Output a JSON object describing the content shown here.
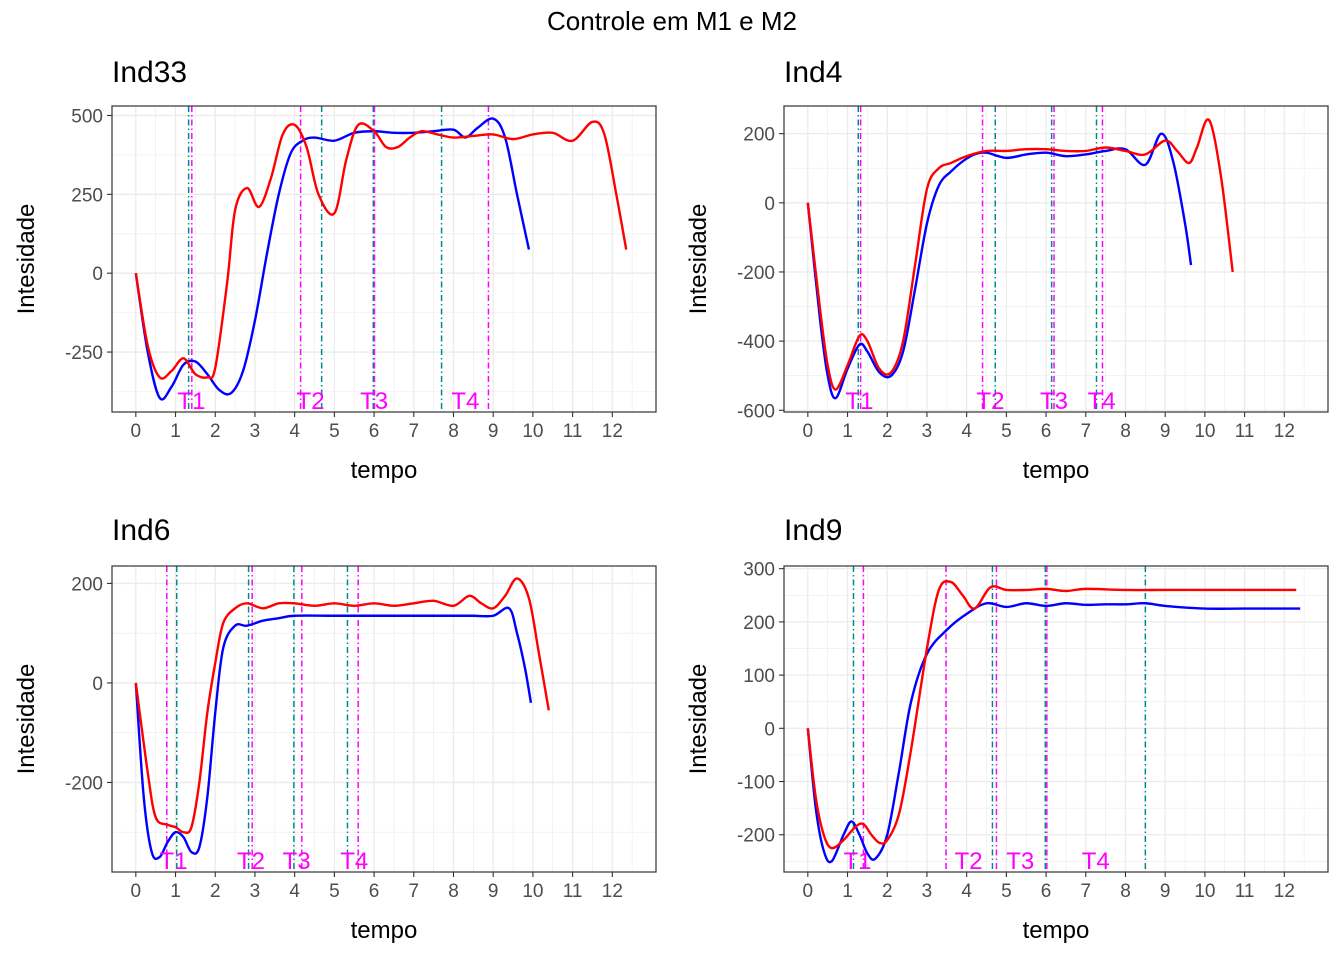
{
  "title": "Controle em M1 e M2",
  "colors": {
    "series_a": "#0000ff",
    "series_b": "#ff0000",
    "vline_a": "#008b8b",
    "vline_b": "#ff00ff",
    "t_label": "#ff00ff",
    "grid": "#ebebeb",
    "panel_border": "#333333"
  },
  "chart_data": [
    {
      "type": "line",
      "title": "Ind33",
      "xlabel": "tempo",
      "ylabel": "Intesidade",
      "xlim": [
        -0.6,
        13.1
      ],
      "ylim": [
        -440,
        530
      ],
      "x_ticks": [
        0,
        1,
        2,
        3,
        4,
        5,
        6,
        7,
        8,
        9,
        10,
        11,
        12
      ],
      "y_ticks": [
        -250,
        0,
        250,
        500
      ],
      "y_tick_labels": [
        "-250",
        "0",
        "250",
        "500"
      ],
      "grid": true,
      "series": [
        {
          "color": "blue",
          "x": [
            0,
            0.3,
            0.6,
            0.9,
            1.2,
            1.5,
            1.8,
            2.1,
            2.4,
            2.7,
            3.0,
            3.3,
            3.6,
            3.9,
            4.2,
            4.5,
            5.0,
            5.5,
            6.0,
            6.5,
            7.0,
            7.5,
            8.0,
            8.3,
            8.6,
            9.0,
            9.3,
            9.6,
            9.9
          ],
          "y": [
            0,
            -250,
            -395,
            -360,
            -290,
            -280,
            -320,
            -370,
            -380,
            -310,
            -150,
            60,
            250,
            380,
            420,
            430,
            420,
            445,
            450,
            445,
            445,
            450,
            455,
            430,
            460,
            490,
            430,
            250,
            75
          ]
        },
        {
          "color": "red",
          "x": [
            0,
            0.3,
            0.6,
            0.9,
            1.2,
            1.5,
            1.8,
            2.0,
            2.3,
            2.5,
            2.8,
            3.1,
            3.4,
            3.7,
            4.0,
            4.3,
            4.6,
            5.0,
            5.3,
            5.6,
            6.0,
            6.3,
            6.6,
            6.9,
            7.2,
            7.6,
            8.0,
            8.5,
            9.0,
            9.5,
            10.0,
            10.5,
            11.0,
            11.5,
            11.8,
            12.1,
            12.35
          ],
          "y": [
            0,
            -230,
            -330,
            -310,
            -270,
            -320,
            -330,
            -300,
            -30,
            200,
            270,
            210,
            300,
            440,
            470,
            400,
            250,
            190,
            360,
            470,
            450,
            400,
            400,
            430,
            450,
            440,
            430,
            435,
            440,
            425,
            440,
            445,
            420,
            480,
            440,
            250,
            75
          ]
        }
      ],
      "vlines": [
        {
          "x": 1.33,
          "color": "teal"
        },
        {
          "x": 1.41,
          "color": "magenta"
        },
        {
          "x": 4.15,
          "color": "magenta"
        },
        {
          "x": 4.68,
          "color": "teal"
        },
        {
          "x": 5.98,
          "color": "teal"
        },
        {
          "x": 6.01,
          "color": "magenta"
        },
        {
          "x": 7.7,
          "color": "teal"
        },
        {
          "x": 8.88,
          "color": "magenta"
        }
      ],
      "labels": [
        {
          "text": "T1",
          "x": 1.4
        },
        {
          "text": "T2",
          "x": 4.4
        },
        {
          "text": "T3",
          "x": 6.0
        },
        {
          "text": "T4",
          "x": 8.3
        }
      ]
    },
    {
      "type": "line",
      "title": "Ind4",
      "xlabel": "tempo",
      "ylabel": "Intesidade",
      "xlim": [
        -0.6,
        13.1
      ],
      "ylim": [
        -605,
        280
      ],
      "x_ticks": [
        0,
        1,
        2,
        3,
        4,
        5,
        6,
        7,
        8,
        9,
        10,
        11,
        12
      ],
      "y_ticks": [
        -600,
        -400,
        -200,
        0,
        200
      ],
      "y_tick_labels": [
        "-600",
        "-400",
        "-200",
        "0",
        "200"
      ],
      "grid": true,
      "series": [
        {
          "color": "blue",
          "x": [
            0,
            0.3,
            0.5,
            0.7,
            1.0,
            1.3,
            1.5,
            1.8,
            2.1,
            2.4,
            2.7,
            3.0,
            3.3,
            3.6,
            3.9,
            4.2,
            4.5,
            5.0,
            5.5,
            6.0,
            6.5,
            7.0,
            7.5,
            8.0,
            8.5,
            8.9,
            9.2,
            9.5,
            9.65
          ],
          "y": [
            0,
            -330,
            -500,
            -565,
            -480,
            -410,
            -430,
            -490,
            -500,
            -430,
            -250,
            -60,
            50,
            90,
            120,
            140,
            145,
            130,
            140,
            145,
            135,
            140,
            150,
            155,
            110,
            200,
            120,
            -60,
            -180
          ]
        },
        {
          "color": "red",
          "x": [
            0,
            0.3,
            0.5,
            0.7,
            1.0,
            1.3,
            1.5,
            1.8,
            2.1,
            2.4,
            2.7,
            3.0,
            3.3,
            3.6,
            4.0,
            4.5,
            5.0,
            5.5,
            6.0,
            6.5,
            7.0,
            7.5,
            8.0,
            8.5,
            9.0,
            9.3,
            9.6,
            9.8,
            10.1,
            10.4,
            10.7
          ],
          "y": [
            0,
            -300,
            -470,
            -540,
            -470,
            -385,
            -400,
            -480,
            -490,
            -400,
            -180,
            40,
            100,
            115,
            135,
            150,
            150,
            155,
            155,
            150,
            150,
            160,
            150,
            140,
            180,
            150,
            115,
            160,
            240,
            80,
            -200
          ]
        }
      ],
      "vlines": [
        {
          "x": 1.27,
          "color": "teal"
        },
        {
          "x": 1.33,
          "color": "magenta"
        },
        {
          "x": 4.4,
          "color": "magenta"
        },
        {
          "x": 4.72,
          "color": "teal"
        },
        {
          "x": 6.14,
          "color": "teal"
        },
        {
          "x": 6.2,
          "color": "magenta"
        },
        {
          "x": 7.27,
          "color": "teal"
        },
        {
          "x": 7.42,
          "color": "magenta"
        }
      ],
      "labels": [
        {
          "text": "T1",
          "x": 1.3
        },
        {
          "text": "T2",
          "x": 4.6
        },
        {
          "text": "T3",
          "x": 6.2
        },
        {
          "text": "T4",
          "x": 7.4
        }
      ]
    },
    {
      "type": "line",
      "title": "Ind6",
      "xlabel": "tempo",
      "ylabel": "Intesidade",
      "xlim": [
        -0.6,
        13.1
      ],
      "ylim": [
        -380,
        235
      ],
      "x_ticks": [
        0,
        1,
        2,
        3,
        4,
        5,
        6,
        7,
        8,
        9,
        10,
        11,
        12
      ],
      "y_ticks": [
        -200,
        0,
        200
      ],
      "y_tick_labels": [
        "-200",
        "0",
        "200"
      ],
      "grid": true,
      "series": [
        {
          "color": "blue",
          "x": [
            0,
            0.2,
            0.4,
            0.6,
            0.8,
            1.0,
            1.2,
            1.4,
            1.6,
            1.8,
            2.0,
            2.2,
            2.5,
            2.8,
            3.2,
            3.6,
            4.0,
            5.0,
            6.0,
            7.0,
            8.0,
            8.5,
            9.0,
            9.4,
            9.6,
            9.8,
            9.95
          ],
          "y": [
            0,
            -230,
            -340,
            -350,
            -320,
            -300,
            -310,
            -340,
            -330,
            -230,
            -60,
            70,
            115,
            115,
            125,
            130,
            135,
            135,
            135,
            135,
            135,
            135,
            135,
            150,
            100,
            30,
            -40
          ]
        },
        {
          "color": "red",
          "x": [
            0,
            0.3,
            0.5,
            0.8,
            1.0,
            1.2,
            1.4,
            1.6,
            1.8,
            2.0,
            2.2,
            2.5,
            2.8,
            3.2,
            3.6,
            4.0,
            4.5,
            5.0,
            5.5,
            6.0,
            6.5,
            7.0,
            7.5,
            8.0,
            8.4,
            8.7,
            9.0,
            9.3,
            9.6,
            9.9,
            10.15,
            10.4
          ],
          "y": [
            0,
            -180,
            -270,
            -285,
            -290,
            -300,
            -290,
            -200,
            -60,
            40,
            120,
            150,
            160,
            150,
            160,
            160,
            155,
            160,
            155,
            160,
            155,
            160,
            165,
            155,
            175,
            160,
            150,
            175,
            210,
            170,
            60,
            -55
          ]
        }
      ],
      "vlines": [
        {
          "x": 0.78,
          "color": "magenta"
        },
        {
          "x": 1.03,
          "color": "teal"
        },
        {
          "x": 2.84,
          "color": "teal"
        },
        {
          "x": 2.93,
          "color": "magenta"
        },
        {
          "x": 3.98,
          "color": "teal"
        },
        {
          "x": 4.18,
          "color": "magenta"
        },
        {
          "x": 5.33,
          "color": "teal"
        },
        {
          "x": 5.6,
          "color": "magenta"
        }
      ],
      "labels": [
        {
          "text": "T1",
          "x": 0.95
        },
        {
          "text": "T2",
          "x": 2.9
        },
        {
          "text": "T3",
          "x": 4.05
        },
        {
          "text": "T4",
          "x": 5.5
        }
      ]
    },
    {
      "type": "line",
      "title": "Ind9",
      "xlabel": "tempo",
      "ylabel": "Intesidade",
      "xlim": [
        -0.6,
        13.1
      ],
      "ylim": [
        -270,
        305
      ],
      "x_ticks": [
        0,
        1,
        2,
        3,
        4,
        5,
        6,
        7,
        8,
        9,
        10,
        11,
        12
      ],
      "y_ticks": [
        -200,
        -100,
        0,
        100,
        200,
        300
      ],
      "y_tick_labels": [
        "-200",
        "-100",
        "0",
        "100",
        "200",
        "300"
      ],
      "grid": true,
      "series": [
        {
          "color": "blue",
          "x": [
            0,
            0.2,
            0.4,
            0.6,
            0.9,
            1.1,
            1.3,
            1.5,
            1.7,
            2.0,
            2.3,
            2.6,
            3.0,
            3.5,
            4.0,
            4.5,
            5.0,
            5.5,
            6.0,
            6.5,
            7.0,
            7.5,
            8.0,
            8.5,
            9.0,
            10.0,
            11.0,
            12.0,
            12.4
          ],
          "y": [
            0,
            -150,
            -230,
            -250,
            -200,
            -175,
            -200,
            -235,
            -245,
            -200,
            -80,
            50,
            140,
            185,
            215,
            235,
            228,
            235,
            230,
            235,
            232,
            233,
            233,
            235,
            230,
            225,
            225,
            225,
            225
          ]
        },
        {
          "color": "red",
          "x": [
            0,
            0.2,
            0.4,
            0.6,
            0.9,
            1.2,
            1.4,
            1.6,
            1.8,
            2.0,
            2.3,
            2.6,
            3.0,
            3.3,
            3.6,
            3.9,
            4.2,
            4.6,
            5.0,
            5.5,
            6.0,
            6.5,
            7.0,
            8.0,
            9.0,
            10.0,
            11.0,
            12.0,
            12.3
          ],
          "y": [
            0,
            -130,
            -200,
            -225,
            -210,
            -185,
            -180,
            -200,
            -215,
            -210,
            -160,
            -40,
            150,
            260,
            275,
            250,
            225,
            265,
            260,
            260,
            262,
            258,
            262,
            260,
            260,
            260,
            260,
            260,
            260
          ]
        }
      ],
      "vlines": [
        {
          "x": 1.15,
          "color": "teal"
        },
        {
          "x": 1.4,
          "color": "magenta"
        },
        {
          "x": 3.48,
          "color": "magenta"
        },
        {
          "x": 4.65,
          "color": "teal"
        },
        {
          "x": 4.75,
          "color": "magenta"
        },
        {
          "x": 5.98,
          "color": "teal"
        },
        {
          "x": 6.02,
          "color": "magenta"
        },
        {
          "x": 8.5,
          "color": "teal"
        }
      ],
      "labels": [
        {
          "text": "T1",
          "x": 1.25
        },
        {
          "text": "T2",
          "x": 4.05
        },
        {
          "text": "T3",
          "x": 5.35
        },
        {
          "text": "T4",
          "x": 7.25
        }
      ]
    }
  ]
}
